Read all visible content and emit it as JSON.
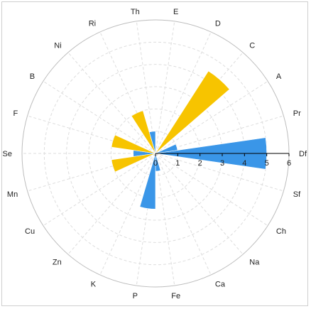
{
  "chart_data": {
    "type": "polar-bar",
    "categories": [
      "Df",
      "Sf",
      "Ch",
      "Na",
      "Ca",
      "Fe",
      "P",
      "K",
      "Zn",
      "Cu",
      "Mn",
      "Se",
      "F",
      "B",
      "Ni",
      "Ri",
      "Th",
      "E",
      "D",
      "C",
      "A",
      "Pr"
    ],
    "radial_ticks": [
      "0",
      "1",
      "2",
      "3",
      "4",
      "5",
      "6"
    ],
    "rlim": [
      0,
      6
    ],
    "grid": true,
    "series": [
      {
        "color": "#3a96e8",
        "values": [
          5.0,
          0.0,
          0.0,
          0.0,
          0.0,
          0.8,
          2.5,
          0.0,
          0.0,
          0.0,
          0.0,
          1.0,
          0.0,
          0.0,
          0.0,
          0.0,
          1.0,
          0.0,
          0.0,
          0.0,
          0.0,
          1.0
        ]
      },
      {
        "color": "#f7c400",
        "values": [
          0.0,
          0.0,
          0.0,
          0.0,
          0.0,
          0.0,
          0.0,
          0.0,
          0.0,
          0.0,
          2.0,
          0.0,
          2.0,
          0.0,
          0.0,
          2.0,
          0.0,
          0.0,
          0.0,
          4.4,
          0.0,
          0.0
        ]
      }
    ]
  }
}
